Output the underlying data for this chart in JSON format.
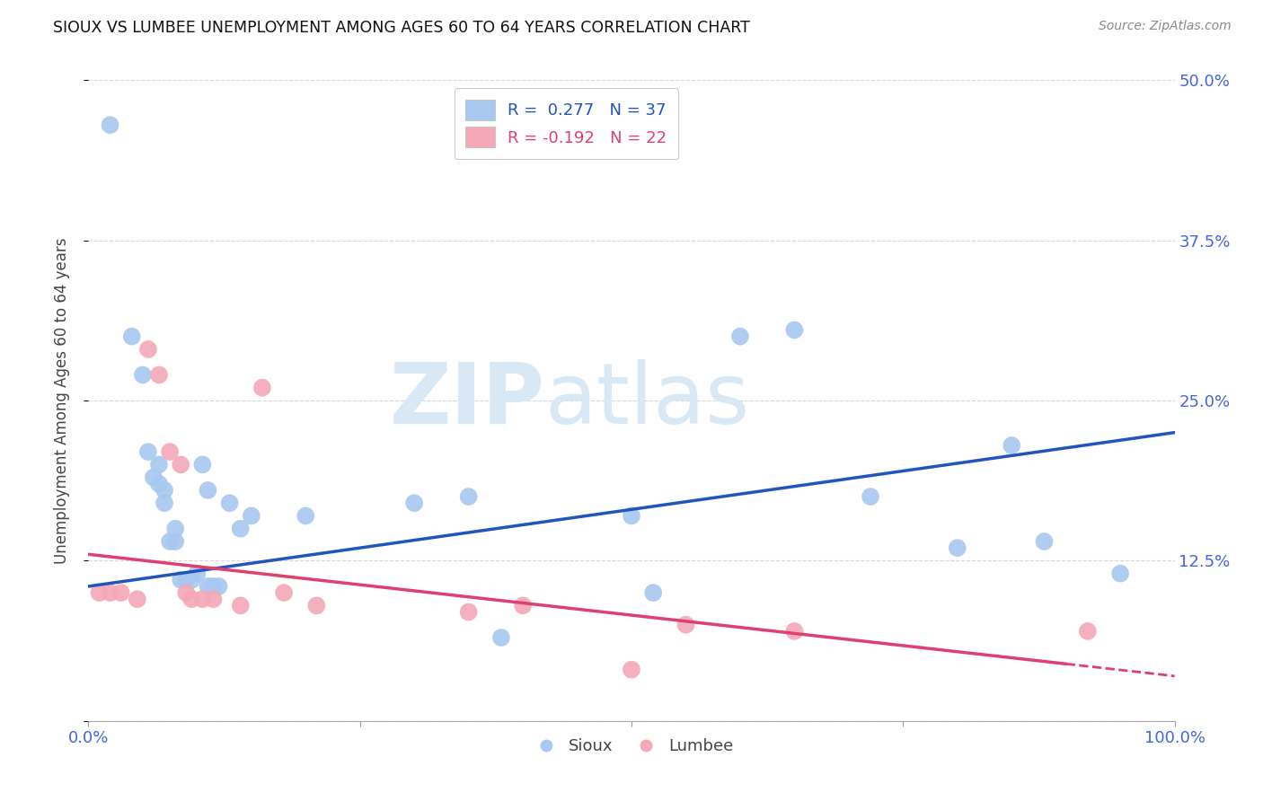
{
  "title": "SIOUX VS LUMBEE UNEMPLOYMENT AMONG AGES 60 TO 64 YEARS CORRELATION CHART",
  "source": "Source: ZipAtlas.com",
  "ylabel": "Unemployment Among Ages 60 to 64 years",
  "xlim": [
    0,
    100
  ],
  "ylim": [
    0,
    50
  ],
  "sioux_color": "#A8C8F0",
  "lumbee_color": "#F4A8B8",
  "sioux_line_color": "#2255BB",
  "lumbee_line_color": "#E04070",
  "watermark_zip": "ZIP",
  "watermark_atlas": "atlas",
  "legend_r_sioux": "R =  0.277",
  "legend_n_sioux": "N = 37",
  "legend_r_lumbee": "R = -0.192",
  "legend_n_lumbee": "N = 22",
  "sioux_x": [
    2.0,
    4.0,
    5.0,
    5.5,
    6.0,
    6.5,
    6.5,
    7.0,
    7.0,
    7.5,
    8.0,
    8.0,
    8.5,
    9.0,
    9.5,
    10.0,
    10.5,
    11.0,
    11.0,
    11.5,
    12.0,
    13.0,
    14.0,
    15.0,
    20.0,
    30.0,
    35.0,
    38.0,
    50.0,
    52.0,
    60.0,
    65.0,
    72.0,
    80.0,
    85.0,
    88.0,
    95.0
  ],
  "sioux_y": [
    46.5,
    30.0,
    27.0,
    21.0,
    19.0,
    18.5,
    20.0,
    17.0,
    18.0,
    14.0,
    14.0,
    15.0,
    11.0,
    11.0,
    11.0,
    11.5,
    20.0,
    18.0,
    10.5,
    10.5,
    10.5,
    17.0,
    15.0,
    16.0,
    16.0,
    17.0,
    17.5,
    6.5,
    16.0,
    10.0,
    30.0,
    30.5,
    17.5,
    13.5,
    21.5,
    14.0,
    11.5
  ],
  "lumbee_x": [
    1.0,
    2.0,
    3.0,
    4.5,
    5.5,
    6.5,
    7.5,
    8.5,
    9.0,
    9.5,
    10.5,
    11.5,
    14.0,
    16.0,
    18.0,
    21.0,
    35.0,
    40.0,
    50.0,
    55.0,
    65.0,
    92.0
  ],
  "lumbee_y": [
    10.0,
    10.0,
    10.0,
    9.5,
    29.0,
    27.0,
    21.0,
    20.0,
    10.0,
    9.5,
    9.5,
    9.5,
    9.0,
    26.0,
    10.0,
    9.0,
    8.5,
    9.0,
    4.0,
    7.5,
    7.0,
    7.0
  ],
  "sioux_line_x0": 0,
  "sioux_line_y0": 10.5,
  "sioux_line_x1": 100,
  "sioux_line_y1": 22.5,
  "lumbee_line_x0": 0,
  "lumbee_line_y0": 13.0,
  "lumbee_line_x1": 100,
  "lumbee_line_y1": 3.5
}
